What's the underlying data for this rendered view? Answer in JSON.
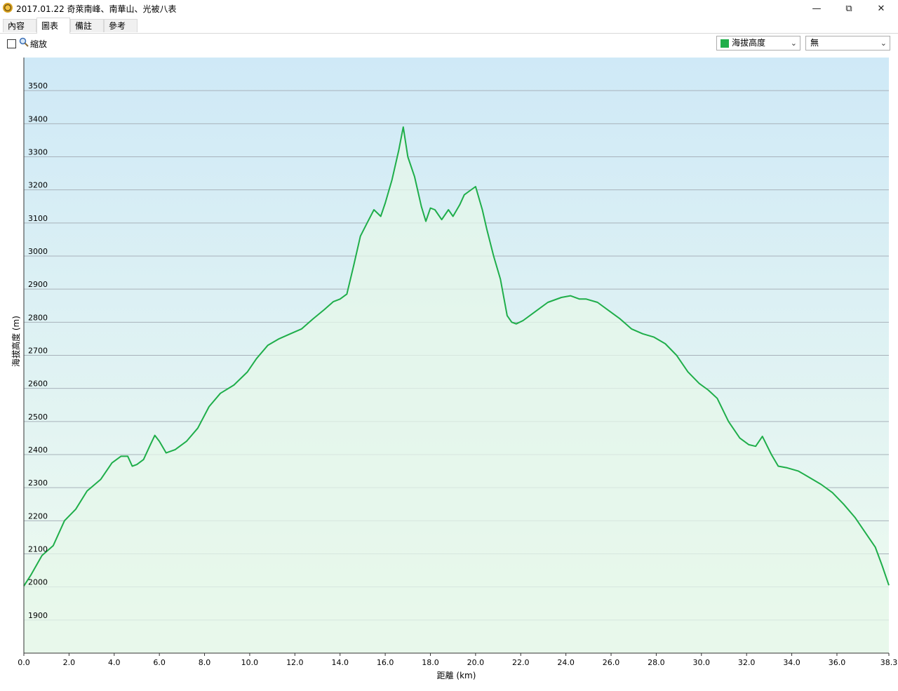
{
  "window": {
    "title": "2017.01.22 奇萊南峰、南華山、光被八表",
    "controls": {
      "minimize": "—",
      "maximize": "⧉",
      "close": "✕"
    }
  },
  "tabs": [
    {
      "label": "內容",
      "active": false
    },
    {
      "label": "圖表",
      "active": true
    },
    {
      "label": "備註",
      "active": false
    },
    {
      "label": "參考",
      "active": false
    }
  ],
  "toolbar": {
    "zoom_label": "縮放",
    "zoom_checked": false,
    "series_select": {
      "value": "海拔高度",
      "color": "#1fae4a"
    },
    "overlay_select": {
      "value": "無"
    }
  },
  "colors": {
    "line": "#1fae4a",
    "plot_top": "#cfe9f7",
    "plot_bottom": "#effbef",
    "grid": "#a8b2bb"
  },
  "chart_data": {
    "type": "area",
    "xlabel": "距離 (km)",
    "ylabel": "海拔高度 (m)",
    "xlim": [
      0,
      38.3
    ],
    "ylim": [
      1800,
      3600
    ],
    "y_ticks": [
      1900,
      2000,
      2100,
      2200,
      2300,
      2400,
      2500,
      2600,
      2700,
      2800,
      2900,
      3000,
      3100,
      3200,
      3300,
      3400,
      3500
    ],
    "x_ticks": [
      0,
      2,
      4,
      6,
      8,
      10,
      12,
      14,
      16,
      18,
      20,
      22,
      24,
      26,
      28,
      30,
      32,
      34,
      36,
      38.3
    ],
    "x_tick_labels": [
      "0.0",
      "2.0",
      "4.0",
      "6.0",
      "8.0",
      "10.0",
      "12.0",
      "14.0",
      "16.0",
      "18.0",
      "20.0",
      "22.0",
      "24.0",
      "26.0",
      "28.0",
      "30.0",
      "32.0",
      "34.0",
      "36.0",
      "38.3"
    ],
    "grid": true,
    "series": [
      {
        "x": [
          0,
          0.3,
          0.8,
          1.3,
          1.8,
          2.3,
          2.8,
          3.4,
          3.9,
          4.3,
          4.6,
          4.8,
          5.0,
          5.3,
          5.6,
          5.8,
          6.0,
          6.3,
          6.7,
          7.2,
          7.7,
          8.2,
          8.7,
          9.3,
          9.9,
          10.3,
          10.8,
          11.3,
          11.8,
          12.3,
          12.8,
          13.3,
          13.7,
          14.0,
          14.3,
          14.6,
          14.9,
          15.2,
          15.5,
          15.8,
          16.0,
          16.3,
          16.6,
          16.8,
          17.0,
          17.3,
          17.6,
          17.8,
          18.0,
          18.2,
          18.5,
          18.8,
          19.0,
          19.3,
          19.5,
          19.7,
          20.0,
          20.3,
          20.5,
          20.8,
          21.1,
          21.4,
          21.6,
          21.8,
          22.1,
          22.6,
          23.2,
          23.8,
          24.2,
          24.6,
          24.9,
          25.4,
          25.9,
          26.4,
          26.9,
          27.4,
          27.9,
          28.4,
          28.9,
          29.4,
          29.9,
          30.3,
          30.7,
          31.2,
          31.7,
          32.1,
          32.4,
          32.7,
          33.1,
          33.4,
          33.8,
          34.3,
          34.8,
          35.3,
          35.8,
          36.3,
          36.8,
          37.3,
          37.7,
          38.0,
          38.3
        ],
        "values": [
          2003,
          2035,
          2095,
          2125,
          2200,
          2235,
          2290,
          2325,
          2375,
          2395,
          2395,
          2365,
          2370,
          2385,
          2430,
          2458,
          2440,
          2405,
          2415,
          2440,
          2480,
          2545,
          2585,
          2610,
          2650,
          2690,
          2730,
          2750,
          2765,
          2780,
          2810,
          2838,
          2862,
          2870,
          2885,
          2970,
          3060,
          3100,
          3140,
          3120,
          3160,
          3230,
          3320,
          3390,
          3300,
          3240,
          3150,
          3105,
          3145,
          3140,
          3110,
          3140,
          3120,
          3155,
          3185,
          3195,
          3210,
          3140,
          3080,
          3000,
          2930,
          2820,
          2800,
          2795,
          2805,
          2830,
          2860,
          2875,
          2880,
          2870,
          2870,
          2860,
          2835,
          2810,
          2780,
          2765,
          2755,
          2735,
          2700,
          2650,
          2615,
          2595,
          2570,
          2500,
          2450,
          2430,
          2425,
          2455,
          2400,
          2365,
          2360,
          2350,
          2330,
          2310,
          2285,
          2250,
          2210,
          2160,
          2120,
          2065,
          2005
        ]
      }
    ]
  }
}
